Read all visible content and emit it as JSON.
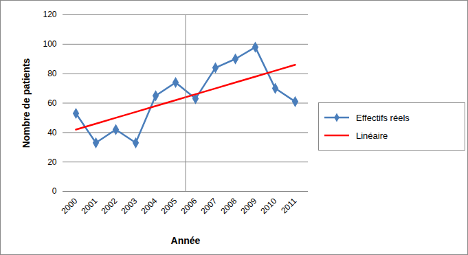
{
  "chart_data": {
    "type": "line",
    "x_label": "Année",
    "y_label": "Nombre de patients",
    "categories": [
      "2000",
      "2001",
      "2002",
      "2003",
      "2004",
      "2005",
      "2006",
      "2007",
      "2008",
      "2009",
      "2010",
      "2011"
    ],
    "series": [
      {
        "name": "Effectifs réels",
        "color": "#4a7ebb",
        "marker": "diamond",
        "line_style": "solid",
        "values": [
          53,
          33,
          42,
          33,
          65,
          74,
          63,
          84,
          90,
          98,
          70,
          61
        ]
      },
      {
        "name": "Linéaire",
        "color": "#ff0000",
        "line_style": "solid",
        "values": [
          42,
          46,
          50,
          54,
          58,
          62,
          66,
          70,
          74,
          78,
          82,
          86
        ]
      }
    ],
    "ylim": [
      0,
      120
    ],
    "yticks": [
      0,
      20,
      40,
      60,
      80,
      100,
      120
    ],
    "grid": true,
    "legend": "right"
  }
}
